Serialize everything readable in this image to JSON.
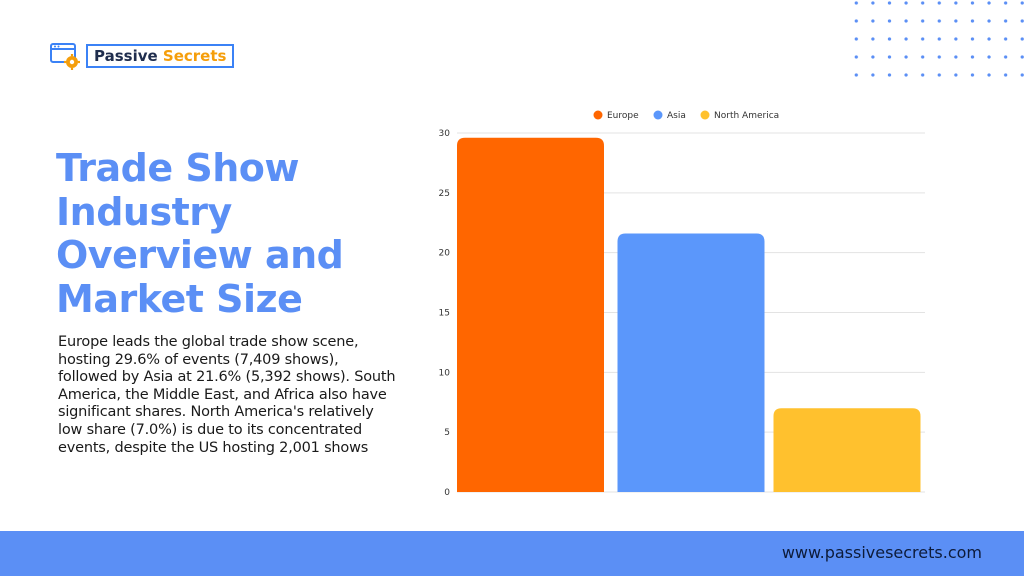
{
  "brand": {
    "word1": "Passive",
    "word2": "Secrets"
  },
  "title": "Trade Show Industry Overview and Market Size",
  "description": "Europe leads the global trade show scene, hosting 29.6% of events (7,409 shows), followed by Asia at 21.6% (5,392 shows). South America, the Middle East, and Africa also have significant shares. North America's relatively low share (7.0%) is due to its concentrated events, despite the US hosting 2,001 shows",
  "footer": {
    "website": "www.passivesecrets.com"
  },
  "colors": {
    "accent": "#5b8ff5",
    "europe": "#ff6600",
    "asia": "#5b97fb",
    "north_america": "#ffc12e"
  },
  "chart_data": {
    "type": "bar",
    "categories": [
      "Europe",
      "Asia",
      "North America"
    ],
    "values": [
      29.6,
      21.6,
      7.0
    ],
    "ylim": [
      0,
      30
    ],
    "yticks": [
      0,
      5,
      10,
      15,
      20,
      25,
      30
    ],
    "grid": true,
    "legend": "top-center",
    "legend_entries": [
      "Europe",
      "Asia",
      "North America"
    ]
  }
}
